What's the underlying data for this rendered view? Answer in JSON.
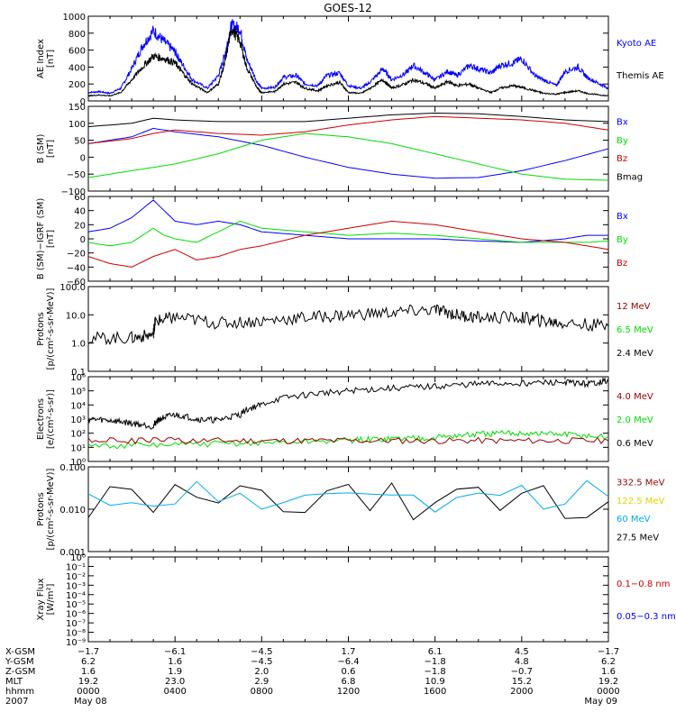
{
  "title": "GOES-12",
  "colors": {
    "black": "#000000",
    "blue": "#0000ff",
    "red": "#cc0000",
    "green": "#00dd00",
    "darkred": "#990000",
    "cyan": "#00aaee",
    "yellow": "#e8d000"
  },
  "chart_data": [
    {
      "type": "line",
      "panel": "ae",
      "ylabel": [
        "AE Index",
        "[nT]"
      ],
      "ylim": [
        0,
        1000
      ],
      "yscale": "linear",
      "yticks": [
        "0",
        "200",
        "400",
        "600",
        "800",
        "1000"
      ],
      "legend": [
        {
          "label": "Kyoto AE",
          "color": "#0000ff"
        },
        {
          "label": "Themis AE",
          "color": "#000000"
        }
      ],
      "series": [
        {
          "name": "Kyoto AE",
          "color": "#0000ff",
          "x": [
            0,
            0.5,
            1,
            1.5,
            2,
            2.5,
            3,
            3.5,
            4,
            4.3,
            4.8,
            5.5,
            6,
            6.3,
            6.6,
            7,
            7.3,
            7.8,
            8,
            8.6,
            9,
            9.6,
            10,
            10.6,
            11,
            11.6,
            12,
            12.6,
            13,
            13.6,
            14,
            14.6,
            15,
            15.6,
            16,
            16.6,
            17,
            17.6,
            18,
            18.6,
            19,
            19.6,
            20,
            20.6,
            21,
            21.6,
            22,
            22.6,
            23,
            23.6,
            24
          ],
          "y": [
            100,
            110,
            90,
            150,
            380,
            650,
            830,
            700,
            580,
            450,
            250,
            150,
            300,
            550,
            890,
            850,
            500,
            220,
            150,
            160,
            280,
            300,
            200,
            180,
            300,
            330,
            180,
            150,
            220,
            380,
            250,
            320,
            420,
            320,
            250,
            350,
            300,
            420,
            380,
            330,
            420,
            450,
            500,
            300,
            250,
            180,
            350,
            400,
            280,
            200,
            150
          ]
        },
        {
          "name": "Themis AE",
          "color": "#000000",
          "x": [
            0,
            0.5,
            1,
            1.5,
            2,
            2.5,
            3,
            3.5,
            4,
            4.3,
            4.8,
            5.5,
            6,
            6.3,
            6.6,
            7,
            7.3,
            7.8,
            8,
            8.6,
            9,
            9.6,
            10,
            10.6,
            11,
            11.6,
            12,
            12.6,
            13,
            13.6,
            14,
            14.6,
            15,
            15.6,
            16,
            16.6,
            17,
            17.6,
            18,
            18.6,
            19,
            19.6,
            20,
            20.6,
            21,
            21.6,
            22,
            22.6,
            23,
            23.6,
            24
          ],
          "y": [
            60,
            70,
            60,
            100,
            250,
            400,
            530,
            500,
            450,
            350,
            200,
            100,
            200,
            450,
            860,
            700,
            400,
            150,
            100,
            110,
            200,
            220,
            150,
            120,
            180,
            220,
            100,
            90,
            150,
            250,
            150,
            200,
            250,
            200,
            150,
            230,
            180,
            200,
            150,
            100,
            150,
            180,
            160,
            120,
            90,
            80,
            100,
            120,
            90,
            70,
            60
          ]
        }
      ]
    },
    {
      "type": "line",
      "panel": "bsm",
      "ylabel": [
        "B (SM)",
        "[nT]"
      ],
      "ylim": [
        -100,
        150
      ],
      "yscale": "linear",
      "yticks": [
        "−100",
        "−50",
        "0",
        "50",
        "100",
        "150"
      ],
      "legend": [
        {
          "label": "Bx",
          "color": "#0000ff"
        },
        {
          "label": "By",
          "color": "#00dd00"
        },
        {
          "label": "Bz",
          "color": "#cc0000"
        },
        {
          "label": "Bmag",
          "color": "#000000"
        }
      ],
      "series": [
        {
          "name": "Bx",
          "color": "#0000ff",
          "x": [
            0,
            2,
            3,
            4,
            6,
            8,
            10,
            12,
            14,
            16,
            18,
            20,
            22,
            24
          ],
          "y": [
            40,
            60,
            85,
            75,
            60,
            35,
            0,
            -30,
            -50,
            -62,
            -60,
            -40,
            -10,
            25
          ]
        },
        {
          "name": "By",
          "color": "#00dd00",
          "x": [
            0,
            2,
            3,
            4,
            6,
            8,
            10,
            12,
            14,
            16,
            18,
            20,
            22,
            24
          ],
          "y": [
            -60,
            -40,
            -30,
            -20,
            10,
            50,
            70,
            60,
            40,
            10,
            -20,
            -50,
            -65,
            -68
          ]
        },
        {
          "name": "Bz",
          "color": "#cc0000",
          "x": [
            0,
            2,
            3,
            4,
            6,
            8,
            10,
            12,
            14,
            16,
            18,
            20,
            22,
            24
          ],
          "y": [
            40,
            55,
            70,
            80,
            70,
            65,
            75,
            95,
            110,
            120,
            115,
            110,
            100,
            80
          ]
        },
        {
          "name": "Bmag",
          "color": "#000000",
          "x": [
            0,
            2,
            3,
            4,
            6,
            8,
            10,
            12,
            14,
            16,
            18,
            20,
            22,
            24
          ],
          "y": [
            90,
            100,
            115,
            110,
            105,
            105,
            105,
            115,
            125,
            130,
            128,
            120,
            110,
            105
          ]
        }
      ]
    },
    {
      "type": "line",
      "panel": "bigrf",
      "ylabel": [
        "B (SM)−IGRF (SM)",
        "[nT]"
      ],
      "ylim": [
        -60,
        60
      ],
      "yscale": "linear",
      "yticks": [
        "−60",
        "−40",
        "−20",
        "0",
        "20",
        "40",
        "60"
      ],
      "legend": [
        {
          "label": "Bx",
          "color": "#0000ff"
        },
        {
          "label": "By",
          "color": "#00dd00"
        },
        {
          "label": "Bz",
          "color": "#cc0000"
        }
      ],
      "series": [
        {
          "name": "Bx",
          "color": "#0000ff",
          "x": [
            0,
            1,
            2,
            3,
            3.5,
            4,
            5,
            6,
            7,
            8,
            10,
            12,
            14,
            16,
            18,
            20,
            22,
            23,
            24
          ],
          "y": [
            10,
            15,
            30,
            55,
            40,
            25,
            20,
            25,
            20,
            10,
            5,
            0,
            0,
            0,
            -3,
            -5,
            0,
            5,
            5
          ]
        },
        {
          "name": "By",
          "color": "#00dd00",
          "x": [
            0,
            1,
            2,
            3,
            3.5,
            4,
            5,
            6,
            7,
            8,
            10,
            12,
            14,
            16,
            18,
            20,
            22,
            23,
            24
          ],
          "y": [
            -5,
            -10,
            -5,
            15,
            5,
            0,
            -5,
            10,
            25,
            15,
            10,
            5,
            8,
            5,
            0,
            -5,
            -5,
            -5,
            -3
          ]
        },
        {
          "name": "Bz",
          "color": "#cc0000",
          "x": [
            0,
            1,
            2,
            3,
            3.5,
            4,
            5,
            6,
            7,
            8,
            10,
            12,
            14,
            16,
            18,
            20,
            22,
            23,
            24
          ],
          "y": [
            -25,
            -35,
            -40,
            -25,
            -20,
            -15,
            -30,
            -25,
            -15,
            -10,
            5,
            15,
            25,
            20,
            10,
            0,
            -5,
            -10,
            -15
          ]
        }
      ]
    },
    {
      "type": "line",
      "panel": "protons_low",
      "ylabel": [
        "Protons",
        "[p/(cm²-s-sr-MeV)]"
      ],
      "ylim": [
        0.1,
        100
      ],
      "yscale": "log",
      "yticks": [
        "0.1",
        "1.0",
        "10.0",
        "100.0"
      ],
      "legend": [
        {
          "label": "12 MeV",
          "color": "#990000"
        },
        {
          "label": "6.5 MeV",
          "color": "#00dd00"
        },
        {
          "label": "2.4 MeV",
          "color": "#000000"
        }
      ],
      "series": [
        {
          "name": "2.4 MeV",
          "color": "#000000",
          "x": [
            0,
            2,
            3,
            3.1,
            4,
            6,
            8,
            10,
            12,
            14,
            16,
            17,
            18,
            20,
            21,
            22,
            24
          ],
          "y": [
            1.5,
            1.5,
            2,
            6,
            8,
            5,
            6,
            8,
            10,
            12,
            15,
            10,
            8,
            8,
            6,
            5,
            4
          ]
        }
      ]
    },
    {
      "type": "line",
      "panel": "electrons",
      "ylabel": [
        "Electrons",
        "[e/(cm²-s-sr)]"
      ],
      "ylim": [
        1,
        1000000
      ],
      "yscale": "log",
      "yticks": [
        "10⁰",
        "10¹",
        "10²",
        "10³",
        "10⁴",
        "10⁵",
        "10⁶"
      ],
      "legend": [
        {
          "label": "4.0 MeV",
          "color": "#990000"
        },
        {
          "label": "2.0 MeV",
          "color": "#00dd00"
        },
        {
          "label": "0.6 MeV",
          "color": "#000000"
        }
      ],
      "series": [
        {
          "name": "0.6 MeV",
          "color": "#000000",
          "x": [
            0,
            1,
            2,
            3,
            3.3,
            4,
            5,
            6,
            7,
            8,
            10,
            12,
            14,
            16,
            18,
            20,
            22,
            23,
            24
          ],
          "y": [
            1000,
            800,
            500,
            300,
            1000,
            2000,
            1000,
            800,
            2000,
            10000,
            50000,
            100000,
            150000,
            200000,
            300000,
            350000,
            400000,
            300000,
            500000
          ]
        },
        {
          "name": "2.0 MeV",
          "color": "#00dd00",
          "x": [
            0,
            4,
            8,
            12,
            14,
            16,
            18,
            20,
            22,
            24
          ],
          "y": [
            12,
            15,
            20,
            30,
            40,
            50,
            80,
            100,
            80,
            50
          ]
        },
        {
          "name": "4.0 MeV",
          "color": "#990000",
          "x": [
            0,
            4,
            8,
            12,
            16,
            20,
            24
          ],
          "y": [
            30,
            30,
            30,
            30,
            30,
            30,
            30
          ]
        }
      ]
    },
    {
      "type": "line",
      "panel": "protons_high",
      "ylabel": [
        "Protons",
        "[p/(cm²-s-sr-MeV)]"
      ],
      "ylim": [
        0.001,
        0.1
      ],
      "yscale": "log",
      "yticks": [
        "0.001",
        "0.010",
        "0.100"
      ],
      "legend": [
        {
          "label": "332.5 MeV",
          "color": "#990000"
        },
        {
          "label": "122.5 MeV",
          "color": "#e8d000"
        },
        {
          "label": "60 MeV",
          "color": "#00aaee"
        },
        {
          "label": "27.5 MeV",
          "color": "#000000"
        }
      ],
      "series": [
        {
          "name": "27.5 MeV",
          "color": "#000000",
          "x": [
            0,
            24
          ],
          "y": [
            0.015,
            0.015
          ]
        },
        {
          "name": "60 MeV",
          "color": "#00aaee",
          "x": [
            0,
            24
          ],
          "y": [
            0.02,
            0.02
          ]
        }
      ]
    },
    {
      "type": "line",
      "panel": "xray",
      "ylabel": [
        "Xray Flux",
        "[W/m²]"
      ],
      "ylim": [
        1e-09,
        1
      ],
      "yscale": "log",
      "yticks": [
        "10⁻⁹",
        "10⁻⁸",
        "10⁻⁷",
        "10⁻⁶",
        "10⁻⁵",
        "10⁻⁴",
        "10⁻³",
        "10⁻²",
        "10⁻¹",
        "10⁰"
      ],
      "legend": [
        {
          "label": "0.1−0.8 nm",
          "color": "#cc0000"
        },
        {
          "label": "0.05−0.3 nm",
          "color": "#0000ff"
        }
      ],
      "series": []
    }
  ],
  "x_axis": {
    "row_labels": [
      "X-GSM",
      "Y-GSM",
      "Z-GSM",
      "MLT",
      "hhmm",
      "2007"
    ],
    "columns": [
      {
        "hour": 0,
        "values": [
          "−1.7",
          "6.2",
          "1.6",
          "19.2",
          "0000",
          "May 08"
        ]
      },
      {
        "hour": 4,
        "values": [
          "−6.1",
          "1.6",
          "1.9",
          "23.0",
          "0400",
          ""
        ]
      },
      {
        "hour": 8,
        "values": [
          "−4.5",
          "−4.5",
          "2.0",
          "2.9",
          "0800",
          ""
        ]
      },
      {
        "hour": 12,
        "values": [
          "1.7",
          "−6.4",
          "0.6",
          "6.8",
          "1200",
          ""
        ]
      },
      {
        "hour": 16,
        "values": [
          "6.1",
          "−1.8",
          "−1.8",
          "10.9",
          "1600",
          ""
        ]
      },
      {
        "hour": 20,
        "values": [
          "4.5",
          "4.8",
          "−0.7",
          "15.2",
          "2000",
          ""
        ]
      },
      {
        "hour": 24,
        "values": [
          "−1.7",
          "6.2",
          "1.6",
          "19.2",
          "0000",
          "May 09"
        ]
      }
    ]
  }
}
